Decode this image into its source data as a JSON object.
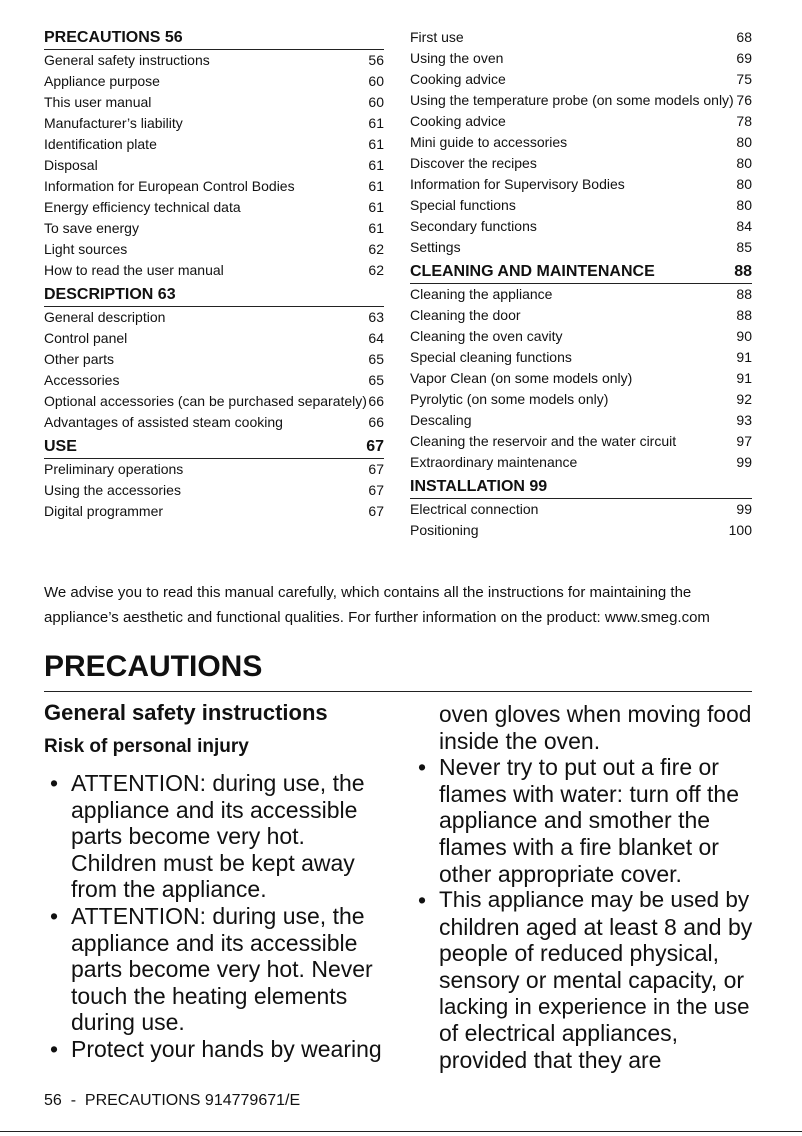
{
  "toc": {
    "left": [
      {
        "heading": {
          "title": "PRECAUTIONS 56"
        },
        "entries": [
          {
            "title": "General safety instructions",
            "page": "56"
          },
          {
            "title": "Appliance purpose",
            "page": "60"
          },
          {
            "title": "This user manual",
            "page": "60"
          },
          {
            "title": "Manufacturer’s liability",
            "page": "61"
          },
          {
            "title": "Identification plate",
            "page": "61"
          },
          {
            "title": "Disposal",
            "page": "61"
          },
          {
            "title": "Information for European Control Bodies",
            "page": "61"
          },
          {
            "title": "Energy efficiency technical data",
            "page": "61"
          },
          {
            "title": "To save energy",
            "page": "61"
          },
          {
            "title": "Light sources",
            "page": "62"
          },
          {
            "title": "How to read the user manual",
            "page": "62"
          }
        ]
      },
      {
        "heading": {
          "title": "DESCRIPTION 63"
        },
        "entries": [
          {
            "title": "General description",
            "page": "63"
          },
          {
            "title": "Control panel",
            "page": "64"
          },
          {
            "title": "Other parts",
            "page": "65"
          },
          {
            "title": "Accessories",
            "page": "65"
          },
          {
            "title": "Optional accessories (can be purchased separately)",
            "page": "66"
          },
          {
            "title": "Advantages of assisted steam cooking",
            "page": "66"
          }
        ]
      },
      {
        "heading": {
          "title": "USE",
          "page": "67"
        },
        "entries": [
          {
            "title": "Preliminary operations",
            "page": "67"
          },
          {
            "title": "Using the accessories",
            "page": "67"
          },
          {
            "title": "Digital programmer",
            "page": "67"
          }
        ]
      }
    ],
    "right": [
      {
        "entries": [
          {
            "title": "First use",
            "page": "68"
          },
          {
            "title": "Using the oven",
            "page": "69"
          },
          {
            "title": "Cooking advice",
            "page": "75"
          },
          {
            "title": "Using the temperature probe (on some models only)",
            "page": "76"
          },
          {
            "title": "Cooking advice",
            "page": "78"
          },
          {
            "title": "Mini guide to accessories",
            "page": "80"
          },
          {
            "title": "Discover the recipes",
            "page": "80"
          },
          {
            "title": "Information for Supervisory Bodies",
            "page": "80"
          },
          {
            "title": "Special functions",
            "page": "80"
          },
          {
            "title": "Secondary functions",
            "page": "84"
          },
          {
            "title": "Settings",
            "page": "85"
          }
        ]
      },
      {
        "heading": {
          "title": "CLEANING AND MAINTENANCE",
          "page": "88"
        },
        "entries": [
          {
            "title": "Cleaning the appliance",
            "page": "88"
          },
          {
            "title": "Cleaning the door",
            "page": "88"
          },
          {
            "title": "Cleaning the oven cavity",
            "page": "90"
          },
          {
            "title": "Special cleaning functions",
            "page": "91"
          },
          {
            "title": "Vapor Clean (on some models only)",
            "page": "91"
          },
          {
            "title": "Pyrolytic (on some models only)",
            "page": "92"
          },
          {
            "title": "Descaling",
            "page": "93"
          },
          {
            "title": "Cleaning the reservoir and the water circuit",
            "page": "97"
          },
          {
            "title": "Extraordinary maintenance",
            "page": "99"
          }
        ]
      },
      {
        "heading": {
          "title": "INSTALLATION 99"
        },
        "entries": [
          {
            "title": "Electrical connection",
            "page": "99"
          },
          {
            "title": "Positioning",
            "page": "100"
          }
        ]
      }
    ]
  },
  "intro": [
    "We advise you to read this manual carefully, which contains all the instructions for maintaining the",
    "appliance’s aesthetic and functional qualities. For further information on the product: www.smeg.com"
  ],
  "section": {
    "title": "PRECAUTIONS",
    "subtitle": "General safety instructions",
    "subsubtitle": "Risk of personal injury",
    "left_bullets": [
      [
        "ATTENTION: during use, the",
        "appliance and its accessible",
        "parts become very hot.",
        "Children must be kept away",
        "from the appliance."
      ],
      [
        "ATTENTION: during use, the",
        "appliance and its accessible",
        "parts become very hot. Never",
        "touch the heating elements",
        "during use."
      ],
      [
        "Protect your hands by wearing"
      ]
    ],
    "right_continuation": [
      "oven gloves when moving food",
      "inside the oven."
    ],
    "right_bullets": [
      [
        "Never try to put out a fire or",
        "flames with water: turn off the",
        "appliance and smother the",
        "flames with a fire blanket or",
        "other appropriate cover."
      ],
      [
        "This appliance may be used by",
        "children aged at least 8 and by",
        "people of reduced physical,",
        "sensory or mental capacity, or",
        "lacking in experience in the use",
        "of electrical appliances,",
        "provided that they are"
      ]
    ]
  },
  "footer": "56  -  PRECAUTIONS 914779671/E"
}
